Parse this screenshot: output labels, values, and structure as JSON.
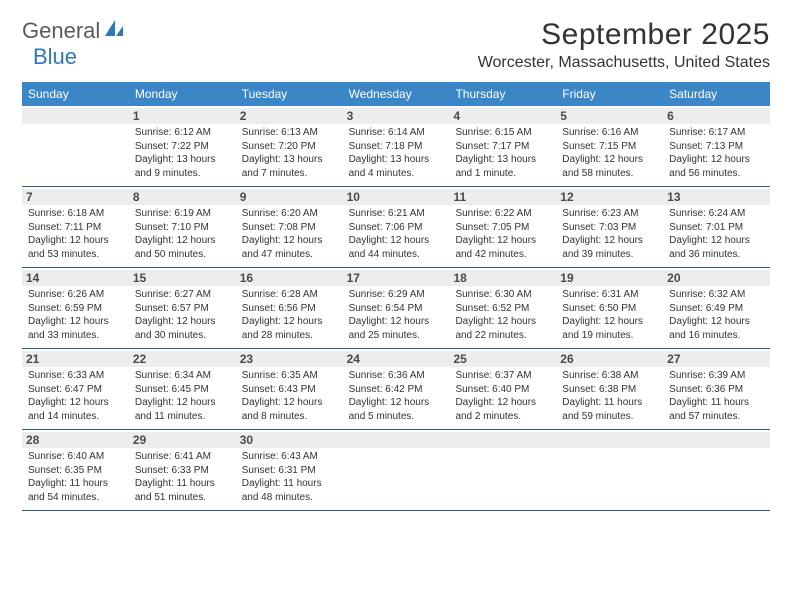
{
  "logo": {
    "text1": "General",
    "text2": "Blue"
  },
  "title": "September 2025",
  "location": "Worcester, Massachusetts, United States",
  "colors": {
    "header_bg": "#3b86c6",
    "header_text": "#ffffff",
    "daynum_bg": "#eceded",
    "week_border": "#2e5e88",
    "logo_blue": "#2e77b8"
  },
  "weekdays": [
    "Sunday",
    "Monday",
    "Tuesday",
    "Wednesday",
    "Thursday",
    "Friday",
    "Saturday"
  ],
  "weeks": [
    [
      {
        "n": "",
        "sr": "",
        "ss": "",
        "d1": "",
        "d2": ""
      },
      {
        "n": "1",
        "sr": "Sunrise: 6:12 AM",
        "ss": "Sunset: 7:22 PM",
        "d1": "Daylight: 13 hours",
        "d2": "and 9 minutes."
      },
      {
        "n": "2",
        "sr": "Sunrise: 6:13 AM",
        "ss": "Sunset: 7:20 PM",
        "d1": "Daylight: 13 hours",
        "d2": "and 7 minutes."
      },
      {
        "n": "3",
        "sr": "Sunrise: 6:14 AM",
        "ss": "Sunset: 7:18 PM",
        "d1": "Daylight: 13 hours",
        "d2": "and 4 minutes."
      },
      {
        "n": "4",
        "sr": "Sunrise: 6:15 AM",
        "ss": "Sunset: 7:17 PM",
        "d1": "Daylight: 13 hours",
        "d2": "and 1 minute."
      },
      {
        "n": "5",
        "sr": "Sunrise: 6:16 AM",
        "ss": "Sunset: 7:15 PM",
        "d1": "Daylight: 12 hours",
        "d2": "and 58 minutes."
      },
      {
        "n": "6",
        "sr": "Sunrise: 6:17 AM",
        "ss": "Sunset: 7:13 PM",
        "d1": "Daylight: 12 hours",
        "d2": "and 56 minutes."
      }
    ],
    [
      {
        "n": "7",
        "sr": "Sunrise: 6:18 AM",
        "ss": "Sunset: 7:11 PM",
        "d1": "Daylight: 12 hours",
        "d2": "and 53 minutes."
      },
      {
        "n": "8",
        "sr": "Sunrise: 6:19 AM",
        "ss": "Sunset: 7:10 PM",
        "d1": "Daylight: 12 hours",
        "d2": "and 50 minutes."
      },
      {
        "n": "9",
        "sr": "Sunrise: 6:20 AM",
        "ss": "Sunset: 7:08 PM",
        "d1": "Daylight: 12 hours",
        "d2": "and 47 minutes."
      },
      {
        "n": "10",
        "sr": "Sunrise: 6:21 AM",
        "ss": "Sunset: 7:06 PM",
        "d1": "Daylight: 12 hours",
        "d2": "and 44 minutes."
      },
      {
        "n": "11",
        "sr": "Sunrise: 6:22 AM",
        "ss": "Sunset: 7:05 PM",
        "d1": "Daylight: 12 hours",
        "d2": "and 42 minutes."
      },
      {
        "n": "12",
        "sr": "Sunrise: 6:23 AM",
        "ss": "Sunset: 7:03 PM",
        "d1": "Daylight: 12 hours",
        "d2": "and 39 minutes."
      },
      {
        "n": "13",
        "sr": "Sunrise: 6:24 AM",
        "ss": "Sunset: 7:01 PM",
        "d1": "Daylight: 12 hours",
        "d2": "and 36 minutes."
      }
    ],
    [
      {
        "n": "14",
        "sr": "Sunrise: 6:26 AM",
        "ss": "Sunset: 6:59 PM",
        "d1": "Daylight: 12 hours",
        "d2": "and 33 minutes."
      },
      {
        "n": "15",
        "sr": "Sunrise: 6:27 AM",
        "ss": "Sunset: 6:57 PM",
        "d1": "Daylight: 12 hours",
        "d2": "and 30 minutes."
      },
      {
        "n": "16",
        "sr": "Sunrise: 6:28 AM",
        "ss": "Sunset: 6:56 PM",
        "d1": "Daylight: 12 hours",
        "d2": "and 28 minutes."
      },
      {
        "n": "17",
        "sr": "Sunrise: 6:29 AM",
        "ss": "Sunset: 6:54 PM",
        "d1": "Daylight: 12 hours",
        "d2": "and 25 minutes."
      },
      {
        "n": "18",
        "sr": "Sunrise: 6:30 AM",
        "ss": "Sunset: 6:52 PM",
        "d1": "Daylight: 12 hours",
        "d2": "and 22 minutes."
      },
      {
        "n": "19",
        "sr": "Sunrise: 6:31 AM",
        "ss": "Sunset: 6:50 PM",
        "d1": "Daylight: 12 hours",
        "d2": "and 19 minutes."
      },
      {
        "n": "20",
        "sr": "Sunrise: 6:32 AM",
        "ss": "Sunset: 6:49 PM",
        "d1": "Daylight: 12 hours",
        "d2": "and 16 minutes."
      }
    ],
    [
      {
        "n": "21",
        "sr": "Sunrise: 6:33 AM",
        "ss": "Sunset: 6:47 PM",
        "d1": "Daylight: 12 hours",
        "d2": "and 14 minutes."
      },
      {
        "n": "22",
        "sr": "Sunrise: 6:34 AM",
        "ss": "Sunset: 6:45 PM",
        "d1": "Daylight: 12 hours",
        "d2": "and 11 minutes."
      },
      {
        "n": "23",
        "sr": "Sunrise: 6:35 AM",
        "ss": "Sunset: 6:43 PM",
        "d1": "Daylight: 12 hours",
        "d2": "and 8 minutes."
      },
      {
        "n": "24",
        "sr": "Sunrise: 6:36 AM",
        "ss": "Sunset: 6:42 PM",
        "d1": "Daylight: 12 hours",
        "d2": "and 5 minutes."
      },
      {
        "n": "25",
        "sr": "Sunrise: 6:37 AM",
        "ss": "Sunset: 6:40 PM",
        "d1": "Daylight: 12 hours",
        "d2": "and 2 minutes."
      },
      {
        "n": "26",
        "sr": "Sunrise: 6:38 AM",
        "ss": "Sunset: 6:38 PM",
        "d1": "Daylight: 11 hours",
        "d2": "and 59 minutes."
      },
      {
        "n": "27",
        "sr": "Sunrise: 6:39 AM",
        "ss": "Sunset: 6:36 PM",
        "d1": "Daylight: 11 hours",
        "d2": "and 57 minutes."
      }
    ],
    [
      {
        "n": "28",
        "sr": "Sunrise: 6:40 AM",
        "ss": "Sunset: 6:35 PM",
        "d1": "Daylight: 11 hours",
        "d2": "and 54 minutes."
      },
      {
        "n": "29",
        "sr": "Sunrise: 6:41 AM",
        "ss": "Sunset: 6:33 PM",
        "d1": "Daylight: 11 hours",
        "d2": "and 51 minutes."
      },
      {
        "n": "30",
        "sr": "Sunrise: 6:43 AM",
        "ss": "Sunset: 6:31 PM",
        "d1": "Daylight: 11 hours",
        "d2": "and 48 minutes."
      },
      {
        "n": "",
        "sr": "",
        "ss": "",
        "d1": "",
        "d2": ""
      },
      {
        "n": "",
        "sr": "",
        "ss": "",
        "d1": "",
        "d2": ""
      },
      {
        "n": "",
        "sr": "",
        "ss": "",
        "d1": "",
        "d2": ""
      },
      {
        "n": "",
        "sr": "",
        "ss": "",
        "d1": "",
        "d2": ""
      }
    ]
  ]
}
